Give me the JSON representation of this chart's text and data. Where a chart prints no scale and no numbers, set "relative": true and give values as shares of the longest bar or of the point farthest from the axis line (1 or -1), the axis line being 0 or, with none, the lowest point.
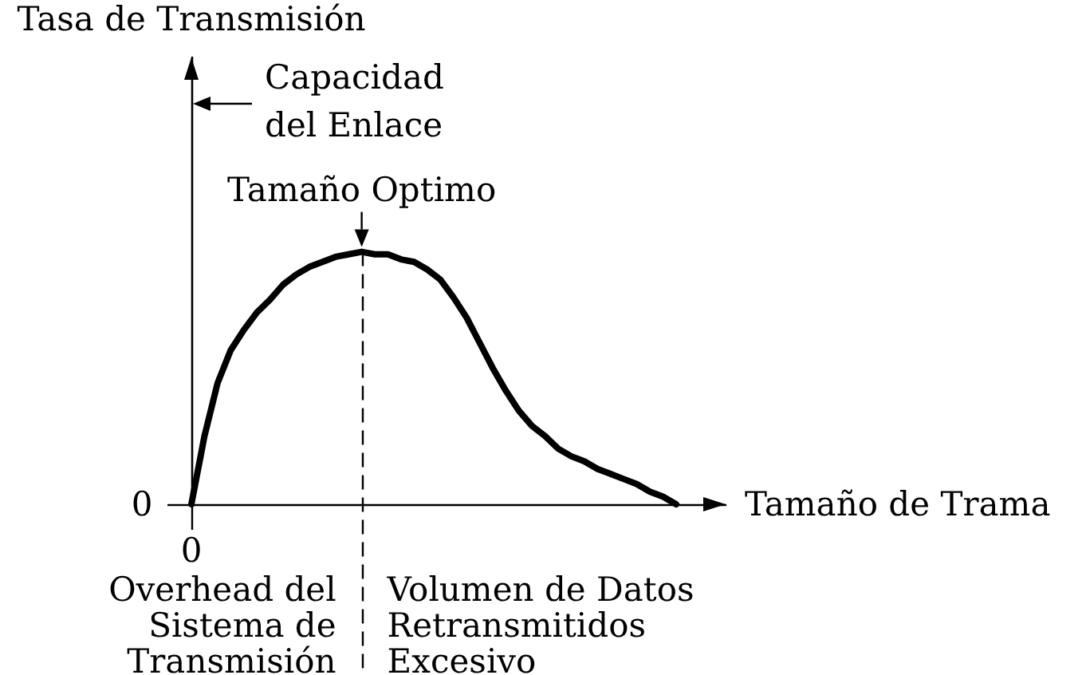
{
  "chart_data": {
    "type": "line",
    "relative": true,
    "xlabel": "Tamaño de Trama",
    "categories": [
      null,
      null,
      null,
      null,
      null,
      null,
      null,
      null,
      null,
      null,
      null,
      null,
      null,
      null,
      null,
      null,
      null,
      null,
      null,
      null,
      null,
      null,
      null,
      null,
      null,
      null,
      null,
      null,
      null,
      null,
      null,
      null,
      null,
      null,
      null,
      null,
      null,
      null
    ],
    "values": [
      0,
      0.27,
      0.48,
      0.61,
      0.69,
      0.76,
      0.81,
      0.87,
      0.91,
      0.94,
      0.96,
      0.98,
      0.99,
      1,
      0.99,
      0.99,
      0.97,
      0.96,
      0.93,
      0.89,
      0.82,
      0.74,
      0.64,
      0.54,
      0.45,
      0.37,
      0.31,
      0.27,
      0.22,
      0.19,
      0.17,
      0.14,
      0.12,
      0.1,
      0.08,
      0.05,
      0.03,
      0
    ],
    "color": "#000000",
    "annotations": [
      "Tasa de Transmisión",
      "0",
      "0",
      "Capacidad\ndel Enlace",
      {
        "text": "Tamaño Optimo",
        "y": 1
      },
      "Overhead del\nSistema de\nTransmisión",
      "Volumen de Datos\nRetransmitidos\nExcesivo"
    ]
  }
}
